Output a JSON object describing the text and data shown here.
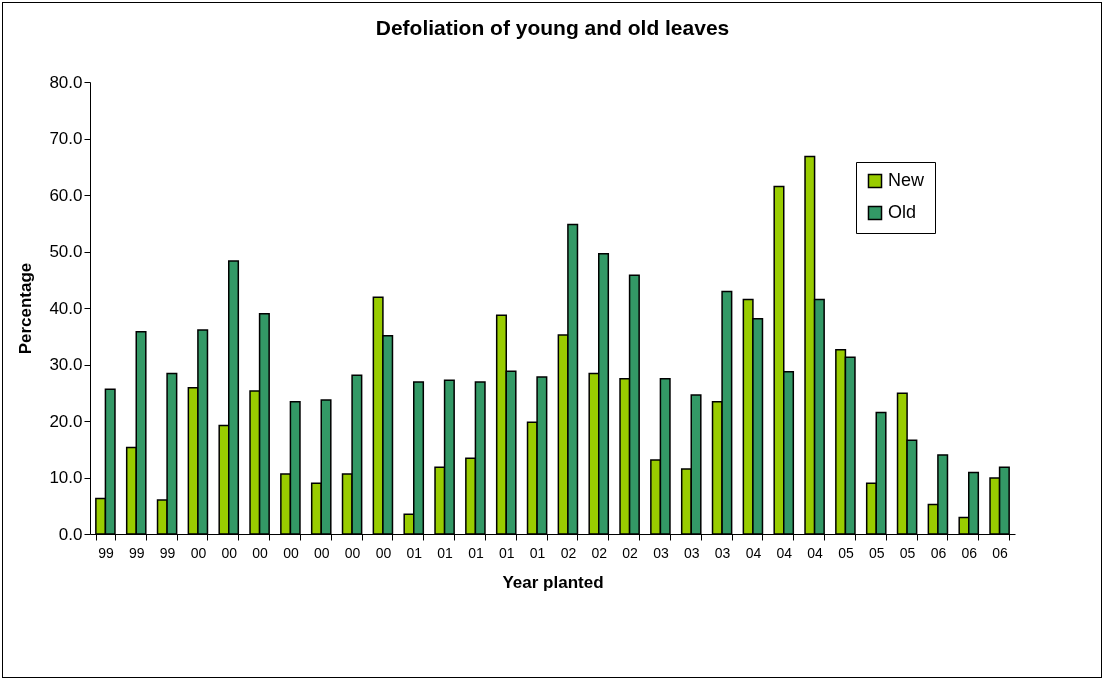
{
  "chart_data": {
    "type": "bar",
    "title": "Defoliation of young and old leaves",
    "xlabel": "Year planted",
    "ylabel": "Percentage",
    "categories": [
      "99",
      "99",
      "99",
      "00",
      "00",
      "00",
      "00",
      "00",
      "00",
      "00",
      "01",
      "01",
      "01",
      "01",
      "01",
      "02",
      "02",
      "02",
      "03",
      "03",
      "03",
      "04",
      "04",
      "04",
      "05",
      "05",
      "05",
      "06",
      "06",
      "06"
    ],
    "series": [
      {
        "name": "New",
        "color": "#99cc00",
        "values": [
          6.3,
          15.3,
          6.0,
          25.9,
          19.2,
          25.3,
          10.6,
          9.0,
          10.6,
          41.9,
          3.5,
          11.8,
          13.4,
          38.7,
          19.8,
          35.2,
          28.4,
          27.5,
          13.1,
          11.5,
          23.4,
          41.5,
          61.5,
          66.8,
          32.6,
          9.0,
          24.9,
          5.2,
          2.9,
          9.9
        ]
      },
      {
        "name": "Old",
        "color": "#339966",
        "values": [
          25.6,
          35.8,
          28.4,
          36.1,
          48.3,
          39.0,
          23.4,
          23.7,
          28.1,
          35.1,
          26.9,
          27.2,
          26.9,
          28.8,
          27.8,
          54.8,
          49.6,
          45.8,
          27.5,
          24.6,
          42.9,
          38.1,
          28.7,
          41.5,
          31.3,
          21.5,
          16.6,
          14.0,
          10.9,
          11.8
        ]
      }
    ],
    "ylim": [
      0,
      80
    ],
    "yticks": [
      {
        "value": 0,
        "label": "0.0"
      },
      {
        "value": 10,
        "label": "10.0"
      },
      {
        "value": 20,
        "label": "20.0"
      },
      {
        "value": 30,
        "label": "30.0"
      },
      {
        "value": 40,
        "label": "40.0"
      },
      {
        "value": 50,
        "label": "50.0"
      },
      {
        "value": 60,
        "label": "60.0"
      },
      {
        "value": 70,
        "label": "70.0"
      },
      {
        "value": 80,
        "label": "80.0"
      }
    ],
    "grid": false,
    "legend": "top right"
  }
}
